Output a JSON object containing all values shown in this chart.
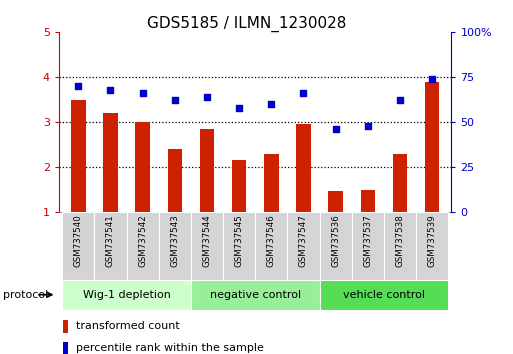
{
  "title": "GDS5185 / ILMN_1230028",
  "samples": [
    "GSM737540",
    "GSM737541",
    "GSM737542",
    "GSM737543",
    "GSM737544",
    "GSM737545",
    "GSM737546",
    "GSM737547",
    "GSM737536",
    "GSM737537",
    "GSM737538",
    "GSM737539"
  ],
  "bar_values": [
    3.5,
    3.2,
    3.0,
    2.4,
    2.85,
    2.15,
    2.3,
    2.95,
    1.47,
    1.5,
    2.3,
    3.9
  ],
  "dot_values": [
    70,
    68,
    66,
    62,
    64,
    58,
    60,
    66,
    46,
    48,
    62,
    74
  ],
  "bar_color": "#cc2200",
  "dot_color": "#0000cc",
  "ylim_left": [
    1,
    5
  ],
  "ylim_right": [
    0,
    100
  ],
  "yticks_left": [
    1,
    2,
    3,
    4,
    5
  ],
  "yticks_right": [
    0,
    25,
    50,
    75,
    100
  ],
  "ytick_labels_right": [
    "0",
    "25",
    "50",
    "75",
    "100%"
  ],
  "groups": [
    {
      "label": "Wig-1 depletion",
      "start": 0,
      "end": 3,
      "color": "#ccffcc"
    },
    {
      "label": "negative control",
      "start": 4,
      "end": 7,
      "color": "#99ee99"
    },
    {
      "label": "vehicle control",
      "start": 8,
      "end": 11,
      "color": "#55dd55"
    }
  ],
  "protocol_label": "protocol",
  "legend_bar_label": "transformed count",
  "legend_dot_label": "percentile rank within the sample",
  "bar_width": 0.45,
  "title_fontsize": 11,
  "left_axis_color": "#cc0000",
  "right_axis_color": "#0000cc"
}
